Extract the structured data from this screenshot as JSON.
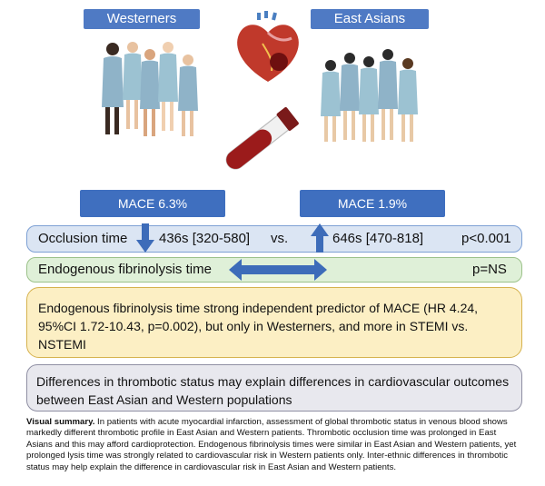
{
  "header": {
    "westerners_label": "Westerners",
    "east_asians_label": "East Asians"
  },
  "mace": {
    "west": "MACE 6.3%",
    "east": "MACE 1.9%"
  },
  "occlusion": {
    "label": "Occlusion time",
    "west_value": "436s [320-580]",
    "vs": "vs.",
    "east_value": "646s [470-818]",
    "p": "p<0.001"
  },
  "fibrinolysis": {
    "label": "Endogenous fibrinolysis time",
    "p": "p=NS"
  },
  "predictor_text": "Endogenous fibrinolysis time strong independent predictor of MACE (HR 4.24, 95%CI 1.72-10.43, p=0.002), but only in Westerners, and more in STEMI vs. NSTEMI",
  "differences_text": "Differences in thrombotic status may explain differences in cardiovascular outcomes between East Asian and Western populations",
  "summary": {
    "heading": "Visual summary.",
    "body": " In patients with acute myocardial infarction, assessment of global thrombotic status in venous blood shows markedly different thrombotic profile in East Asian and Western patients. Thrombotic occlusion time was prolonged in East Asians and this may afford cardioprotection. Endogenous fibrinolysis times were similar in East Asian and Western patients, yet prolonged lysis time was strongly related to cardiovascular risk in Western patients only. Inter-ethnic differences in thrombotic status may help explain the difference in cardiovascular risk in East Asian and Western patients."
  },
  "colors": {
    "header_blue": "#4f7ac4",
    "occlusion_band": "#dbe5f3",
    "fibrinolysis_band": "#dff0d8",
    "predictor_box": "#fcefc4",
    "differences_box": "#e8e8ee",
    "arrow_blue": "#3d6cb9"
  }
}
